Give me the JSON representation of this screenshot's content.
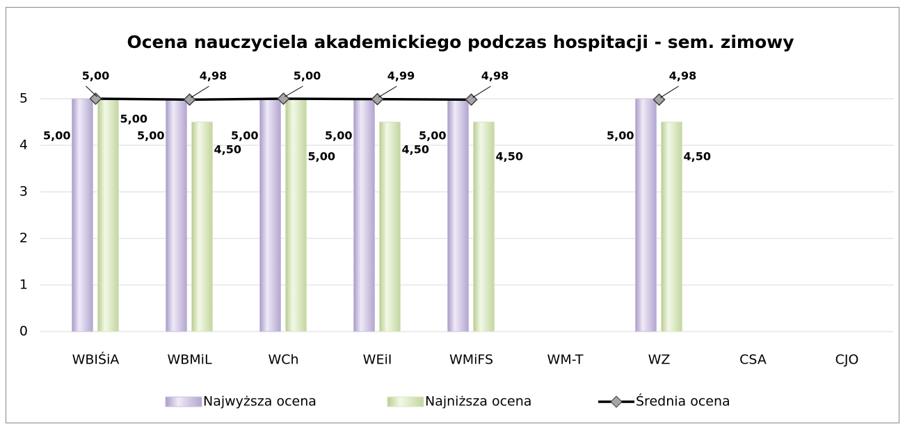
{
  "chart_data": {
    "type": "bar",
    "title": "Ocena nauczyciela akademickiego podczas hospitacji - sem. zimowy",
    "categories": [
      "WBIŚiA",
      "WBMiL",
      "WCh",
      "WEiI",
      "WMiFS",
      "WM-T",
      "WZ",
      "CSA",
      "CJO"
    ],
    "series": [
      {
        "name": "Najwyższa ocena",
        "color": "#c9bedd",
        "values": [
          5,
          5,
          5,
          5,
          5,
          null,
          5,
          null,
          null
        ],
        "value_labels": [
          "5,00",
          "5,00",
          "5,00",
          "5,00",
          "5,00",
          null,
          "5,00",
          null,
          null
        ]
      },
      {
        "name": "Najniższa ocena",
        "color": "#d9e6bf",
        "values": [
          5,
          4.5,
          5,
          4.5,
          4.5,
          null,
          4.5,
          null,
          null
        ],
        "value_labels": [
          "5,00",
          "4,50",
          "5,00",
          "4,50",
          "4,50",
          null,
          "4,50",
          null,
          null
        ]
      },
      {
        "name": "Średnia ocena",
        "type": "line",
        "color": "#000000",
        "values": [
          5,
          4.98,
          5,
          4.99,
          4.98,
          null,
          4.98,
          null,
          null
        ],
        "value_labels": [
          "5,00",
          "4,98",
          "5,00",
          "4,99",
          "4,98",
          null,
          "4,98",
          null,
          null
        ]
      }
    ],
    "ylim": [
      0,
      5
    ],
    "yticks": [
      0,
      1,
      2,
      3,
      4,
      5
    ],
    "grid": true,
    "legend": "bottom"
  }
}
